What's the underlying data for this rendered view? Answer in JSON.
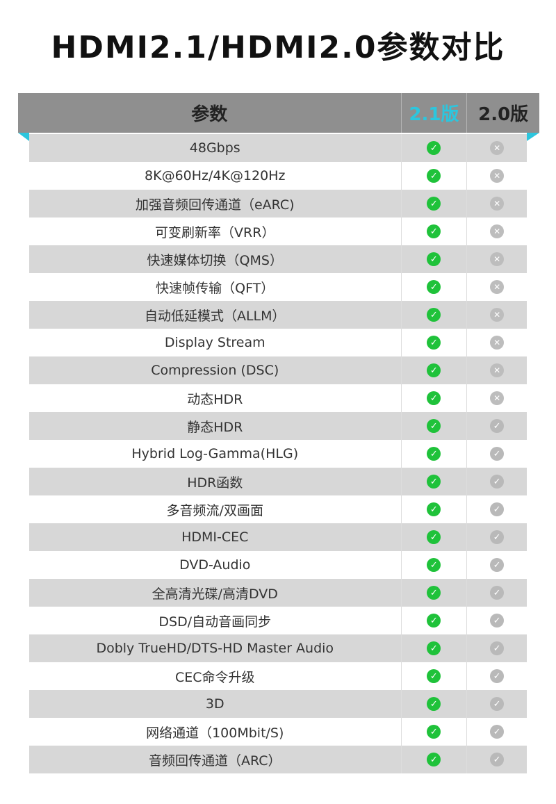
{
  "title": "HDMI2.1/HDMI2.0参数对比",
  "header": {
    "param": "参数",
    "v21": "2.1版",
    "v20": "2.0版",
    "accent": "#2cc6de"
  },
  "rows": [
    {
      "name": "48Gbps",
      "v21": "check",
      "v20": "cross"
    },
    {
      "name": "8K@60Hz/4K@120Hz",
      "v21": "check",
      "v20": "cross"
    },
    {
      "name": "加强音频回传通道（eARC)",
      "v21": "check",
      "v20": "cross"
    },
    {
      "name": "可变刷新率（VRR）",
      "v21": "check",
      "v20": "cross"
    },
    {
      "name": "快速媒体切换（QMS）",
      "v21": "check",
      "v20": "cross"
    },
    {
      "name": "快速帧传输（QFT）",
      "v21": "check",
      "v20": "cross"
    },
    {
      "name": "自动低延模式（ALLM）",
      "v21": "check",
      "v20": "cross"
    },
    {
      "name": "Display Stream",
      "v21": "check",
      "v20": "cross"
    },
    {
      "name": "Compression (DSC)",
      "v21": "check",
      "v20": "cross"
    },
    {
      "name": "动态HDR",
      "v21": "check",
      "v20": "cross"
    },
    {
      "name": "静态HDR",
      "v21": "check",
      "v20": "check"
    },
    {
      "name": "Hybrid Log-Gamma(HLG)",
      "v21": "check",
      "v20": "check"
    },
    {
      "name": "HDR函数",
      "v21": "check",
      "v20": "check"
    },
    {
      "name": "多音频流/双画面",
      "v21": "check",
      "v20": "check"
    },
    {
      "name": "HDMI-CEC",
      "v21": "check",
      "v20": "check"
    },
    {
      "name": "DVD-Audio",
      "v21": "check",
      "v20": "check"
    },
    {
      "name": "全高清光碟/高清DVD",
      "v21": "check",
      "v20": "check"
    },
    {
      "name": "DSD/自动音画同步",
      "v21": "check",
      "v20": "check"
    },
    {
      "name": "Dobly TrueHD/DTS-HD Master Audio",
      "v21": "check",
      "v20": "check"
    },
    {
      "name": "CEC命令升级",
      "v21": "check",
      "v20": "check"
    },
    {
      "name": "3D",
      "v21": "check",
      "v20": "check"
    },
    {
      "name": "网络通道（100Mbit/S)",
      "v21": "check",
      "v20": "check"
    },
    {
      "name": "音频回传通道（ARC）",
      "v21": "check",
      "v20": "check"
    }
  ]
}
